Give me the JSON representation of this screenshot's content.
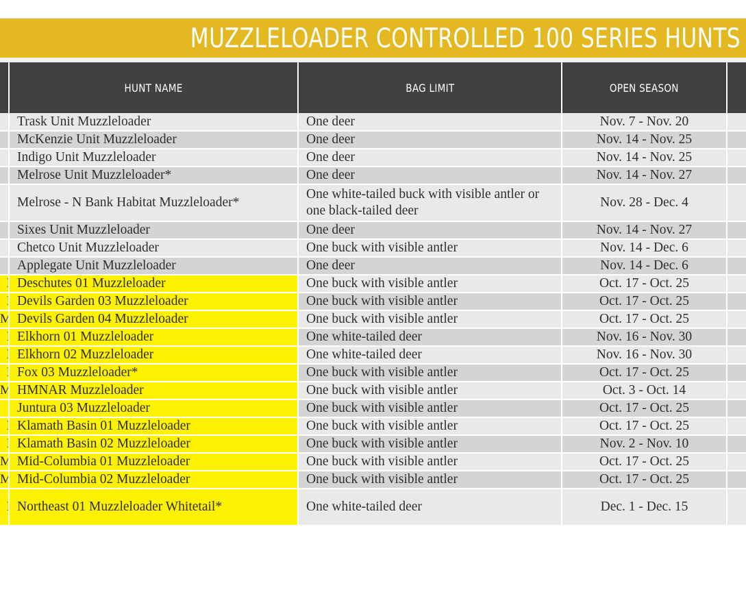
{
  "title": "MUZZLELOADER CONTROLLED 100 SERIES HUNTS",
  "headers": {
    "hunt_name": "HUNT NAME",
    "bag_limit": "BAG LIMIT",
    "open_season": "OPEN SEASON"
  },
  "highlight_color": "#fff200",
  "header_color": "#414141",
  "title_bar_color": "#e3b820",
  "rows": [
    {
      "marker": "",
      "hunt_name": "Trask Unit Muzzleloader",
      "bag_limit": "One deer",
      "season": "Nov. 7 - Nov. 20"
    },
    {
      "marker": "",
      "hunt_name": "McKenzie Unit Muzzleloader",
      "bag_limit": "One deer",
      "season": "Nov. 14 - Nov. 25"
    },
    {
      "marker": "",
      "hunt_name": "Indigo Unit Muzzleloader",
      "bag_limit": "One deer",
      "season": "Nov. 14 - Nov. 25"
    },
    {
      "marker": "",
      "hunt_name": "Melrose Unit Muzzleloader*",
      "bag_limit": "One deer",
      "season": "Nov. 14 - Nov. 27"
    },
    {
      "marker": "",
      "hunt_name": "Melrose - N Bank Habitat Muzzleloader*",
      "bag_limit": "One white-tailed buck with visible antler or one black-tailed deer",
      "season": "Nov. 28 - Dec. 4"
    },
    {
      "marker": "",
      "hunt_name": "Sixes Unit Muzzleloader",
      "bag_limit": "One deer",
      "season": "Nov. 14 - Nov. 27"
    },
    {
      "marker": "",
      "hunt_name": "Chetco Unit Muzzleloader",
      "bag_limit": "One buck with visible antler",
      "season": "Nov. 14 - Dec. 6"
    },
    {
      "marker": "",
      "hunt_name": "Applegate Unit Muzzleloader",
      "bag_limit": "One deer",
      "season": "Nov. 14 - Dec. 6"
    },
    {
      "marker": "I",
      "hunt_name": "Deschutes 01 Muzzleloader",
      "bag_limit": "One buck with visible antler",
      "season": "Oct. 17 - Oct. 25"
    },
    {
      "marker": "I",
      "hunt_name": "Devils Garden 03 Muzzleloader",
      "bag_limit": "One buck with visible antler",
      "season": "Oct. 17 - Oct. 25"
    },
    {
      "marker": "M",
      "hunt_name": "Devils Garden 04 Muzzleloader",
      "bag_limit": "One buck with visible antler",
      "season": "Oct. 17 - Oct. 25"
    },
    {
      "marker": "I",
      "hunt_name": "Elkhorn 01 Muzzleloader",
      "bag_limit": "One white-tailed deer",
      "season": "Nov. 16 - Nov. 30"
    },
    {
      "marker": "I",
      "hunt_name": "Elkhorn 02 Muzzleloader",
      "bag_limit": "One white-tailed deer",
      "season": "Nov. 16 - Nov. 30"
    },
    {
      "marker": "I",
      "hunt_name": "Fox 03 Muzzleloader*",
      "bag_limit": "One buck with visible antler",
      "season": "Oct. 17 - Oct. 25"
    },
    {
      "marker": "M",
      "hunt_name": "HMNAR Muzzleloader",
      "bag_limit": "One buck with visible antler",
      "season": "Oct. 3 - Oct. 14"
    },
    {
      "marker": "",
      "hunt_name": "Juntura 03 Muzzleloader",
      "bag_limit": "One buck with visible antler",
      "season": "Oct. 17 - Oct. 25"
    },
    {
      "marker": "I",
      "hunt_name": "Klamath Basin 01 Muzzleloader",
      "bag_limit": "One buck with visible antler",
      "season": "Oct. 17 - Oct. 25"
    },
    {
      "marker": "I",
      "hunt_name": "Klamath Basin 02 Muzzleloader",
      "bag_limit": "One buck with visible antler",
      "season": "Nov. 2 - Nov. 10"
    },
    {
      "marker": "M",
      "hunt_name": "Mid-Columbia 01 Muzzleloader",
      "bag_limit": "One buck with visible antler",
      "season": "Oct. 17 - Oct. 25"
    },
    {
      "marker": "M",
      "hunt_name": "Mid-Columbia 02 Muzzleloader",
      "bag_limit": "One buck with visible antler",
      "season": "Oct. 17 - Oct. 25"
    },
    {
      "marker": "I",
      "hunt_name": "Northeast 01 Muzzleloader Whitetail*",
      "bag_limit": "One white-tailed deer",
      "season": "Dec. 1 - Dec. 15"
    }
  ]
}
